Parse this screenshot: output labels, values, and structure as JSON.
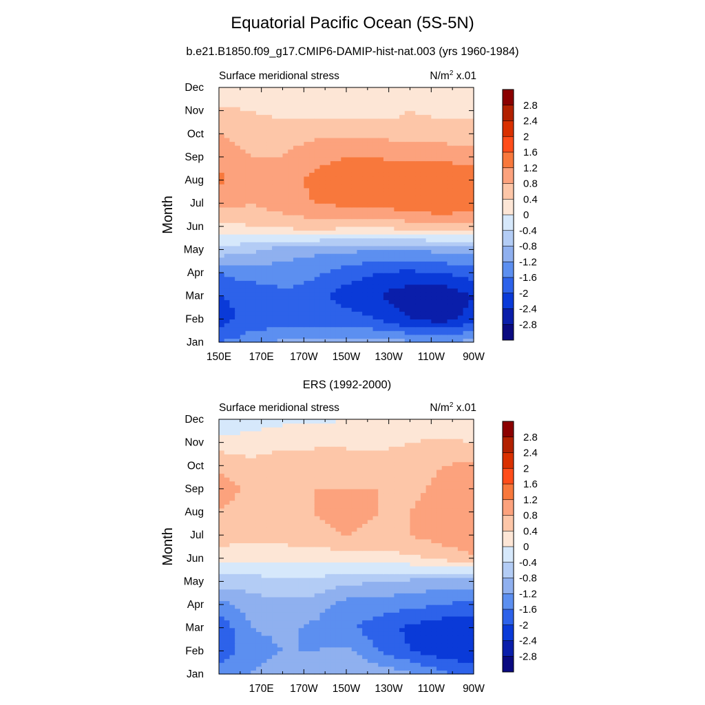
{
  "title": "Equatorial Pacific Ocean (5S-5N)",
  "subtitle": "b.e21.B1850.f09_g17.CMIP6-DAMIP-hist-nat.003 (yrs 1960-1984)",
  "second_title": "ERS (1992-2000)",
  "colorbar": {
    "labels": [
      "2.8",
      "2.4",
      "2",
      "1.6",
      "1.2",
      "0.8",
      "0.4",
      "0",
      "-0.4",
      "-0.8",
      "-1.2",
      "-1.6",
      "-2",
      "-2.4",
      "-2.8"
    ],
    "colors": [
      "#8b0000",
      "#b22000",
      "#d93000",
      "#ff4d1a",
      "#f8783c",
      "#fca27d",
      "#fdc6a8",
      "#fde6d6",
      "#d6e8fb",
      "#b3ccf5",
      "#8fb0ef",
      "#5c8ff0",
      "#2d62ea",
      "#0a3ad8",
      "#0a1eaa",
      "#0a0a80"
    ]
  },
  "chart_data": [
    {
      "type": "heatmap",
      "panel": "model",
      "title": "b.e21.B1850.f09_g17.CMIP6-DAMIP-hist-nat.003 (yrs 1960-1984)",
      "left_label": "Surface meridional stress",
      "units_base": "N/m",
      "units_sup": "2",
      "units_suffix": "x.01",
      "ylabel": "Month",
      "y_ticks": [
        "Jan",
        "Feb",
        "Mar",
        "Apr",
        "May",
        "Jun",
        "Jul",
        "Aug",
        "Sep",
        "Oct",
        "Nov",
        "Dec"
      ],
      "x_ticks": [
        "150E",
        "170E",
        "170W",
        "150W",
        "130W",
        "110W",
        "90W"
      ],
      "x": [
        150,
        165,
        180,
        195,
        210,
        225,
        240,
        255,
        270
      ],
      "xlim": [
        150,
        270
      ],
      "values": [
        [
          -1.4,
          -1.2,
          -0.9,
          -0.9,
          -0.9,
          -0.9,
          -0.9,
          -0.9,
          -0.9
        ],
        [
          -2.0,
          -1.6,
          -1.7,
          -1.6,
          -1.6,
          -1.8,
          -2.2,
          -2.4,
          -2.0
        ],
        [
          -1.8,
          -1.7,
          -1.5,
          -1.6,
          -2.0,
          -2.2,
          -2.5,
          -2.6,
          -2.2
        ],
        [
          -1.4,
          -1.2,
          -1.2,
          -1.3,
          -1.6,
          -1.8,
          -1.9,
          -1.8,
          -1.6
        ],
        [
          -0.3,
          -0.5,
          -0.8,
          -0.9,
          -0.9,
          -1.0,
          -1.0,
          -0.9,
          -0.8
        ],
        [
          0.4,
          0.6,
          0.7,
          0.8,
          0.7,
          0.7,
          0.8,
          0.9,
          0.8
        ],
        [
          1.2,
          1.0,
          1.2,
          1.4,
          1.5,
          1.5,
          1.7,
          1.8,
          1.7
        ],
        [
          1.5,
          1.1,
          1.2,
          1.5,
          1.6,
          1.6,
          1.7,
          1.8,
          1.7
        ],
        [
          1.3,
          1.0,
          1.0,
          1.3,
          1.4,
          1.4,
          1.3,
          1.3,
          1.2
        ],
        [
          1.0,
          0.8,
          0.8,
          0.9,
          0.9,
          0.9,
          0.8,
          0.8,
          0.8
        ],
        [
          0.7,
          0.6,
          0.5,
          0.5,
          0.4,
          0.4,
          0.6,
          0.5,
          0.5
        ],
        [
          0.3,
          0.3,
          0.3,
          0.3,
          0.3,
          0.3,
          0.4,
          0.4,
          0.4
        ]
      ],
      "zlim": [
        -3.0,
        3.0
      ]
    },
    {
      "type": "heatmap",
      "panel": "observation",
      "title": "ERS (1992-2000)",
      "left_label": "Surface meridional stress",
      "units_base": "N/m",
      "units_sup": "2",
      "units_suffix": "x.01",
      "ylabel": "Month",
      "y_ticks": [
        "Jan",
        "Feb",
        "Mar",
        "Apr",
        "May",
        "Jun",
        "Jul",
        "Aug",
        "Sep",
        "Oct",
        "Nov",
        "Dec"
      ],
      "x_ticks": [
        "170E",
        "170W",
        "150W",
        "130W",
        "110W",
        "90W"
      ],
      "x": [
        150,
        165,
        180,
        195,
        210,
        225,
        240,
        255,
        270
      ],
      "xlim": [
        150,
        270
      ],
      "values": [
        [
          -1.2,
          -1.0,
          -0.8,
          -0.7,
          -0.6,
          -0.7,
          -0.9,
          -1.3,
          -1.5
        ],
        [
          -1.6,
          -1.2,
          -1.0,
          -1.0,
          -0.9,
          -1.4,
          -1.8,
          -2.0,
          -2.2
        ],
        [
          -1.7,
          -1.0,
          -0.9,
          -1.1,
          -1.3,
          -1.6,
          -1.9,
          -2.1,
          -2.1
        ],
        [
          -1.2,
          -0.8,
          -0.7,
          -0.8,
          -1.2,
          -1.2,
          -1.3,
          -1.4,
          -1.6
        ],
        [
          -0.4,
          -0.4,
          -0.3,
          -0.3,
          -0.5,
          -0.6,
          -0.7,
          -0.8,
          -0.8
        ],
        [
          0.4,
          0.3,
          0.3,
          0.3,
          0.4,
          0.4,
          0.5,
          0.7,
          0.9
        ],
        [
          0.8,
          0.7,
          0.8,
          0.9,
          1.0,
          0.9,
          1.0,
          1.2,
          1.4
        ],
        [
          1.0,
          0.8,
          0.9,
          1.0,
          1.1,
          1.0,
          1.0,
          1.2,
          1.3
        ],
        [
          1.2,
          0.9,
          1.0,
          1.0,
          1.0,
          1.0,
          0.9,
          1.1,
          1.2
        ],
        [
          0.9,
          0.7,
          0.8,
          0.9,
          0.9,
          0.8,
          0.8,
          1.0,
          1.1
        ],
        [
          0.4,
          0.4,
          0.5,
          0.5,
          0.5,
          0.5,
          0.6,
          0.7,
          0.6
        ],
        [
          -0.2,
          0.0,
          0.1,
          0.1,
          0.2,
          0.2,
          0.3,
          0.3,
          0.2
        ]
      ],
      "zlim": [
        -3.0,
        3.0
      ]
    }
  ]
}
